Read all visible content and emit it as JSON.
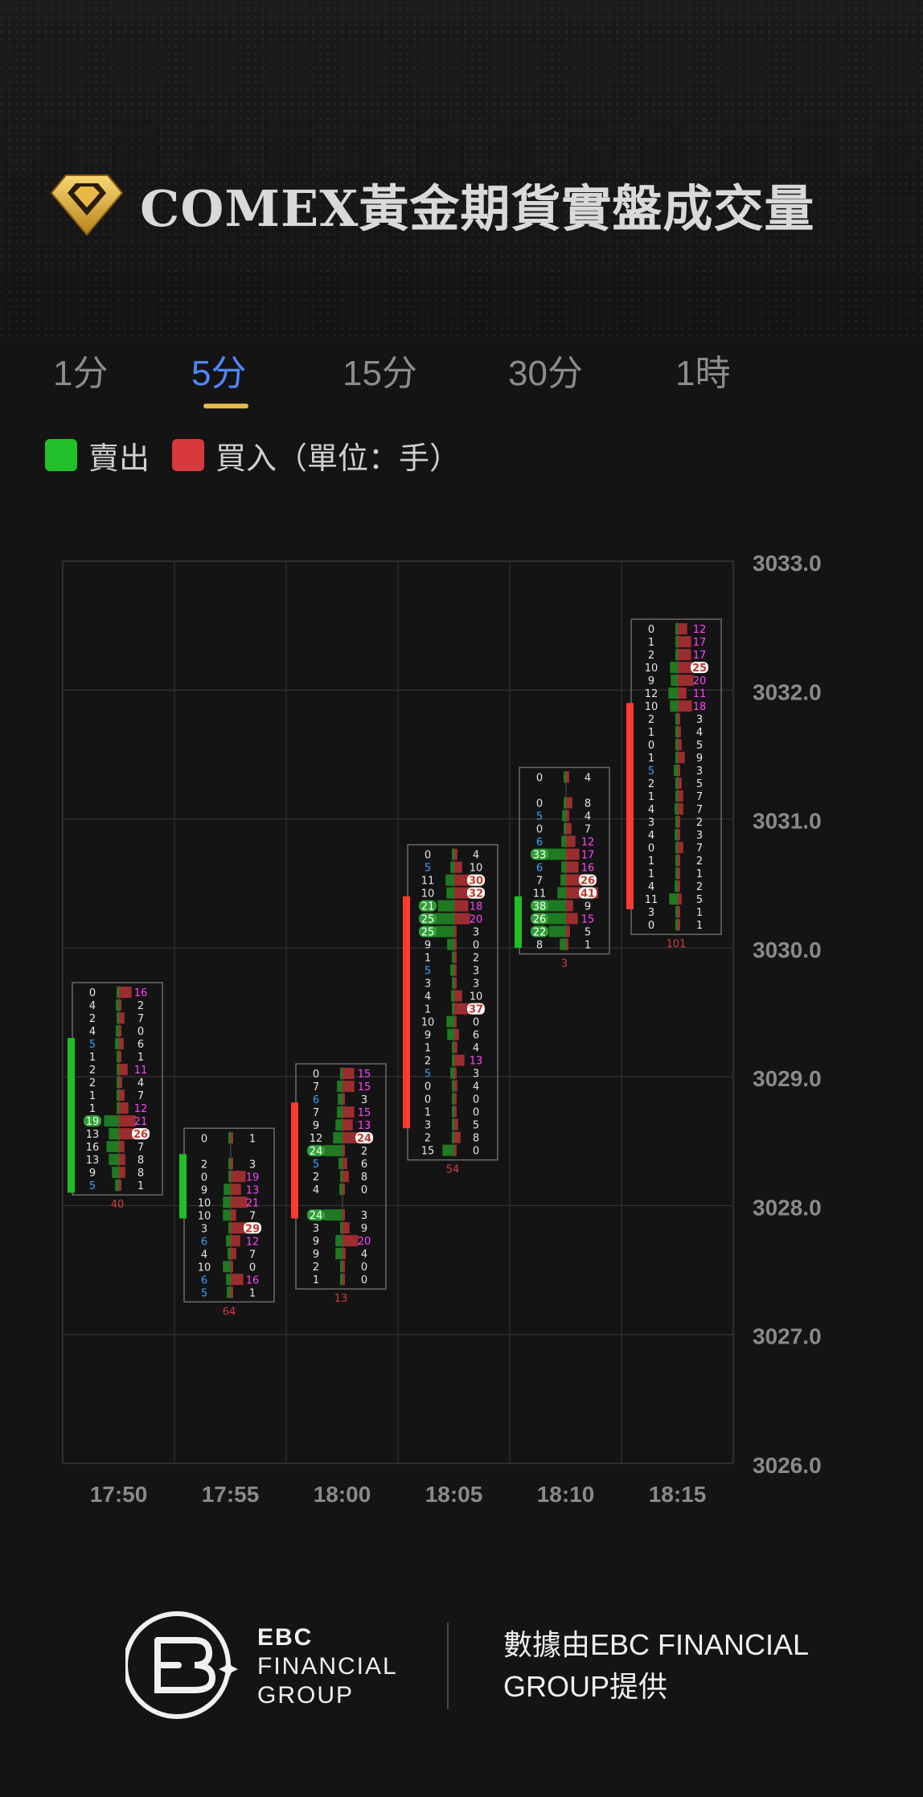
{
  "header": {
    "title": "COMEX黃金期貨實盤成交量"
  },
  "tabs": [
    {
      "label": "1分",
      "active": false
    },
    {
      "label": "5分",
      "active": true
    },
    {
      "label": "15分",
      "active": false
    },
    {
      "label": "30分",
      "active": false
    },
    {
      "label": "1時",
      "active": false
    }
  ],
  "legend": {
    "sell_label": "賣出",
    "buy_label": "買入（單位：手）",
    "sell_color": "#22c02a",
    "buy_color": "#d8393c"
  },
  "colors": {
    "background": "#141414",
    "tab_active": "#4f86ff",
    "tab_underline": "#e4b94b",
    "bullish_body": "#ff3b30",
    "bearish_body": "#1fbf26",
    "big_value": "#ff44ff",
    "small_value": "#3aa0ff"
  },
  "chart_data": {
    "type": "footprint",
    "x_categories": [
      "17:50",
      "17:55",
      "18:00",
      "18:05",
      "18:10",
      "18:15"
    ],
    "y_tick_labels": [
      "3033.0",
      "3032.0",
      "3031.0",
      "3030.0",
      "3029.0",
      "3028.0",
      "3027.0",
      "3026.0"
    ],
    "ylim": [
      3026.0,
      3033.0
    ],
    "grid": true,
    "candles": [
      {
        "time": "17:50",
        "direction": "down",
        "body_top": 3029.3,
        "body_bottom": 3028.1,
        "delta": "40",
        "rows": [
          [
            0,
            16
          ],
          [
            4,
            2
          ],
          [
            2,
            7
          ],
          [
            4,
            0
          ],
          [
            5,
            6
          ],
          [
            1,
            1
          ],
          [
            2,
            11
          ],
          [
            2,
            4
          ],
          [
            1,
            7
          ],
          [
            1,
            12
          ],
          [
            19,
            21
          ],
          [
            13,
            26
          ],
          [
            16,
            7
          ],
          [
            13,
            8
          ],
          [
            9,
            8
          ],
          [
            5,
            1
          ]
        ]
      },
      {
        "time": "17:55",
        "direction": "down",
        "body_top": 3028.4,
        "body_bottom": 3027.9,
        "delta": "64",
        "rows": [
          [
            0,
            1
          ],
          [
            null,
            null
          ],
          [
            2,
            3
          ],
          [
            0,
            19
          ],
          [
            9,
            13
          ],
          [
            10,
            21
          ],
          [
            10,
            7
          ],
          [
            3,
            29
          ],
          [
            6,
            12
          ],
          [
            4,
            7
          ],
          [
            10,
            0
          ],
          [
            6,
            16
          ],
          [
            5,
            1
          ]
        ]
      },
      {
        "time": "18:00",
        "direction": "up",
        "body_top": 3027.9,
        "body_bottom": 3028.8,
        "delta": "13",
        "rows": [
          [
            0,
            15
          ],
          [
            7,
            15
          ],
          [
            6,
            3
          ],
          [
            7,
            15
          ],
          [
            9,
            13
          ],
          [
            12,
            24
          ],
          [
            24,
            2
          ],
          [
            5,
            6
          ],
          [
            2,
            8
          ],
          [
            4,
            0
          ],
          [
            null,
            null
          ],
          [
            24,
            3
          ],
          [
            3,
            9
          ],
          [
            9,
            20
          ],
          [
            9,
            4
          ],
          [
            2,
            0
          ],
          [
            1,
            0
          ]
        ]
      },
      {
        "time": "18:05",
        "direction": "up",
        "body_top": 3028.6,
        "body_bottom": 3030.4,
        "delta": "54",
        "rows": [
          [
            0,
            4
          ],
          [
            5,
            10
          ],
          [
            11,
            30
          ],
          [
            10,
            32
          ],
          [
            21,
            18
          ],
          [
            25,
            20
          ],
          [
            25,
            3
          ],
          [
            9,
            0
          ],
          [
            1,
            2
          ],
          [
            5,
            3
          ],
          [
            3,
            3
          ],
          [
            4,
            10
          ],
          [
            1,
            37
          ],
          [
            10,
            0
          ],
          [
            9,
            6
          ],
          [
            1,
            4
          ],
          [
            2,
            13
          ],
          [
            5,
            3
          ],
          [
            0,
            4
          ],
          [
            0,
            0
          ],
          [
            1,
            0
          ],
          [
            3,
            5
          ],
          [
            2,
            8
          ],
          [
            15,
            0
          ]
        ]
      },
      {
        "time": "18:10",
        "direction": "down",
        "body_top": 3030.4,
        "body_bottom": 3030.0,
        "delta": "3",
        "rows": [
          [
            0,
            4
          ],
          [
            null,
            null
          ],
          [
            0,
            8
          ],
          [
            5,
            4
          ],
          [
            0,
            7
          ],
          [
            6,
            12
          ],
          [
            33,
            17
          ],
          [
            6,
            16
          ],
          [
            7,
            26
          ],
          [
            11,
            41
          ],
          [
            38,
            9
          ],
          [
            26,
            15
          ],
          [
            22,
            5
          ],
          [
            8,
            1
          ]
        ]
      },
      {
        "time": "18:15",
        "direction": "up",
        "body_top": 3030.3,
        "body_bottom": 3031.9,
        "delta": "101",
        "rows": [
          [
            0,
            12
          ],
          [
            1,
            17
          ],
          [
            2,
            17
          ],
          [
            10,
            25
          ],
          [
            9,
            20
          ],
          [
            12,
            11
          ],
          [
            10,
            18
          ],
          [
            2,
            3
          ],
          [
            1,
            4
          ],
          [
            0,
            5
          ],
          [
            1,
            9
          ],
          [
            5,
            3
          ],
          [
            2,
            5
          ],
          [
            1,
            7
          ],
          [
            4,
            7
          ],
          [
            3,
            2
          ],
          [
            4,
            3
          ],
          [
            0,
            7
          ],
          [
            1,
            2
          ],
          [
            1,
            1
          ],
          [
            4,
            2
          ],
          [
            11,
            5
          ],
          [
            3,
            1
          ],
          [
            0,
            1
          ]
        ]
      }
    ]
  },
  "footer": {
    "brand_line1": "EBC",
    "brand_line2": "FINANCIAL",
    "brand_line3": "GROUP",
    "credit": "數據由EBC FINANCIAL GROUP提供"
  }
}
